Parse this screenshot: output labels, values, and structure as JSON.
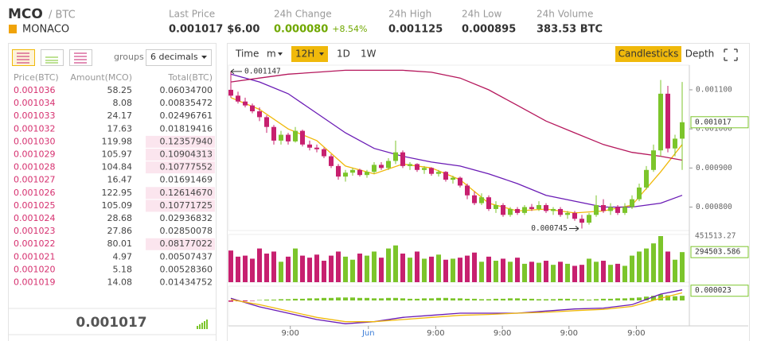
{
  "header": {
    "symbol": "MCO",
    "pair": "/ BTC",
    "name": "MONACO",
    "stats": [
      {
        "label": "Last Price",
        "value": "0.001017",
        "value2": "$6.00"
      },
      {
        "label": "24h Change",
        "value": "0.000080",
        "value2": "+8.54%"
      },
      {
        "label": "24h High",
        "value": "0.001125"
      },
      {
        "label": "24h Low",
        "value": "0.000895"
      },
      {
        "label": "24h Volume",
        "value": "383.53 BTC"
      }
    ]
  },
  "order_book": {
    "groups_label": "groups",
    "decimals": "6 decimals",
    "columns": [
      "Price(BTC)",
      "Amount(MCO)",
      "Total(BTC)"
    ],
    "rows": [
      [
        "0.001036",
        "58.25",
        "0.06034700"
      ],
      [
        "0.001034",
        "8.08",
        "0.00835472"
      ],
      [
        "0.001033",
        "24.17",
        "0.02496761"
      ],
      [
        "0.001032",
        "17.63",
        "0.01819416"
      ],
      [
        "0.001030",
        "119.98",
        "0.12357940"
      ],
      [
        "0.001029",
        "105.97",
        "0.10904313"
      ],
      [
        "0.001028",
        "104.84",
        "0.10777552"
      ],
      [
        "0.001027",
        "16.47",
        "0.01691469"
      ],
      [
        "0.001026",
        "122.95",
        "0.12614670"
      ],
      [
        "0.001025",
        "105.09",
        "0.10771725"
      ],
      [
        "0.001024",
        "28.68",
        "0.02936832"
      ],
      [
        "0.001023",
        "27.86",
        "0.02850078"
      ],
      [
        "0.001022",
        "80.01",
        "0.08177022"
      ],
      [
        "0.001021",
        "4.97",
        "0.00507437"
      ],
      [
        "0.001020",
        "5.18",
        "0.00528360"
      ],
      [
        "0.001019",
        "14.08",
        "0.01434752"
      ]
    ],
    "highlighted": [
      false,
      false,
      false,
      false,
      true,
      true,
      true,
      false,
      true,
      true,
      false,
      false,
      true,
      false,
      false,
      false
    ],
    "last_price": "0.001017"
  },
  "chart_toolbar": {
    "intervals": [
      "Time",
      "m",
      "12H",
      "1D",
      "1W"
    ],
    "active_interval": 2,
    "views": [
      "Candlesticks",
      "Depth"
    ],
    "active_view": 0
  },
  "chart_data": {
    "type": "candlestick",
    "up_color": "#7cc52b",
    "down_color": "#c7206f",
    "ylim": [
      0.00074,
      0.001163
    ],
    "yticks": [
      {
        "value": 0.0008,
        "label": "0.000800"
      },
      {
        "value": 0.0009,
        "label": "0.000900"
      },
      {
        "value": 0.001,
        "label": "0.001000"
      },
      {
        "value": 0.0011,
        "label": "0.001100"
      }
    ],
    "xticks": [
      {
        "value": 8.3,
        "label": "9:00"
      },
      {
        "value": 19.2,
        "label": "Jun"
      },
      {
        "value": 28.6,
        "label": "9:00"
      },
      {
        "value": 37.9,
        "label": "9:00"
      },
      {
        "value": 47.2,
        "label": "9:00"
      },
      {
        "value": 56.6,
        "label": "9:00"
      }
    ],
    "xtick_highlight": 1,
    "candles": [
      [
        0.0011,
        0.001147,
        0.00108,
        0.001085
      ],
      [
        0.001085,
        0.001095,
        0.001065,
        0.00107
      ],
      [
        0.00107,
        0.00108,
        0.001055,
        0.00106
      ],
      [
        0.00106,
        0.001065,
        0.00104,
        0.001045
      ],
      [
        0.001045,
        0.001055,
        0.00102,
        0.00103
      ],
      [
        0.00103,
        0.001035,
        0.00099,
        0.001005
      ],
      [
        0.001005,
        0.00101,
        0.00096,
        0.00097
      ],
      [
        0.00097,
        0.000995,
        0.00096,
        0.000985
      ],
      [
        0.000985,
        0.00099,
        0.00096,
        0.000968
      ],
      [
        0.000968,
        0.001005,
        0.000965,
        0.000995
      ],
      [
        0.000995,
        0.000998,
        0.000955,
        0.00096
      ],
      [
        0.00096,
        0.00097,
        0.000945,
        0.000952
      ],
      [
        0.000952,
        0.00096,
        0.00094,
        0.000948
      ],
      [
        0.000948,
        0.000952,
        0.000925,
        0.00093
      ],
      [
        0.00093,
        0.000935,
        0.0009,
        0.000905
      ],
      [
        0.000905,
        0.00091,
        0.00087,
        0.000878
      ],
      [
        0.000878,
        0.000895,
        0.000865,
        0.000888
      ],
      [
        0.000888,
        0.0009,
        0.00088,
        0.000895
      ],
      [
        0.000895,
        0.000898,
        0.000878,
        0.000882
      ],
      [
        0.000882,
        0.000895,
        0.000875,
        0.00089
      ],
      [
        0.00089,
        0.000915,
        0.000885,
        0.000908
      ],
      [
        0.000908,
        0.000915,
        0.000895,
        0.0009
      ],
      [
        0.0009,
        0.000925,
        0.000895,
        0.000918
      ],
      [
        0.000918,
        0.00097,
        0.00091,
        0.00094
      ],
      [
        0.00094,
        0.000945,
        0.0009,
        0.000905
      ],
      [
        0.000905,
        0.000915,
        0.000895,
        0.00091
      ],
      [
        0.00091,
        0.000912,
        0.00089,
        0.000895
      ],
      [
        0.000895,
        0.000905,
        0.000885,
        0.0009
      ],
      [
        0.0009,
        0.000902,
        0.00088,
        0.000885
      ],
      [
        0.000885,
        0.000895,
        0.000878,
        0.00089
      ],
      [
        0.00089,
        0.000892,
        0.000865,
        0.00087
      ],
      [
        0.00087,
        0.00088,
        0.00086,
        0.000875
      ],
      [
        0.000875,
        0.000878,
        0.00085,
        0.000855
      ],
      [
        0.000855,
        0.00086,
        0.00082,
        0.00083
      ],
      [
        0.00083,
        0.00084,
        0.000805,
        0.00081
      ],
      [
        0.00081,
        0.000835,
        0.000805,
        0.000825
      ],
      [
        0.000825,
        0.00083,
        0.00079,
        0.000795
      ],
      [
        0.000795,
        0.000815,
        0.000785,
        0.000805
      ],
      [
        0.000805,
        0.00081,
        0.000775,
        0.00078
      ],
      [
        0.00078,
        0.0008,
        0.000775,
        0.000795
      ],
      [
        0.000795,
        0.0008,
        0.00078,
        0.000785
      ],
      [
        0.000785,
        0.000805,
        0.00078,
        0.0008
      ],
      [
        0.0008,
        0.000808,
        0.00079,
        0.000795
      ],
      [
        0.000795,
        0.000815,
        0.00079,
        0.000805
      ],
      [
        0.000805,
        0.00081,
        0.000785,
        0.00079
      ],
      [
        0.00079,
        0.0008,
        0.00078,
        0.000795
      ],
      [
        0.000795,
        0.0008,
        0.000775,
        0.00078
      ],
      [
        0.00078,
        0.00079,
        0.00077,
        0.000785
      ],
      [
        0.000785,
        0.00079,
        0.000765,
        0.00077
      ],
      [
        0.00077,
        0.00078,
        0.000745,
        0.00076
      ],
      [
        0.00076,
        0.000785,
        0.000755,
        0.00078
      ],
      [
        0.00078,
        0.00083,
        0.000775,
        0.000805
      ],
      [
        0.000805,
        0.00082,
        0.000785,
        0.00079
      ],
      [
        0.00079,
        0.00081,
        0.00078,
        0.0008
      ],
      [
        0.0008,
        0.000805,
        0.00078,
        0.000785
      ],
      [
        0.000785,
        0.00081,
        0.00078,
        0.0008
      ],
      [
        0.0008,
        0.00083,
        0.000795,
        0.00082
      ],
      [
        0.00082,
        0.00086,
        0.000815,
        0.00085
      ],
      [
        0.00085,
        0.000905,
        0.000845,
        0.000895
      ],
      [
        0.000895,
        0.00096,
        0.00089,
        0.000945
      ],
      [
        0.000945,
        0.001125,
        0.00093,
        0.00109
      ],
      [
        0.00109,
        0.00111,
        0.00094,
        0.00095
      ],
      [
        0.00095,
        0.000985,
        0.00093,
        0.000975
      ],
      [
        0.000975,
        0.00112,
        0.000895,
        0.001017
      ]
    ],
    "ma_index": [
      0,
      4,
      8,
      12,
      16,
      20,
      24,
      28,
      32,
      36,
      40,
      44,
      48,
      52,
      56,
      60,
      63
    ],
    "ma": [
      {
        "color": "#f0b90b",
        "values": [
          0.00108,
          0.00105,
          0.001,
          0.00097,
          0.000905,
          0.000885,
          0.00091,
          0.0009,
          0.00087,
          0.00081,
          0.00079,
          0.000795,
          0.000785,
          0.00079,
          0.000805,
          0.00089,
          0.00096
        ]
      },
      {
        "color": "#6a1bb5",
        "values": [
          0.00114,
          0.00112,
          0.00109,
          0.00104,
          0.00099,
          0.00095,
          0.00093,
          0.000915,
          0.000905,
          0.000885,
          0.00086,
          0.00083,
          0.000815,
          0.0008,
          0.0008,
          0.00081,
          0.00083
        ]
      },
      {
        "color": "#b5175c",
        "values": [
          0.00112,
          0.00113,
          0.00114,
          0.001145,
          0.00115,
          0.00115,
          0.00115,
          0.001145,
          0.00113,
          0.0011,
          0.00106,
          0.00102,
          0.00099,
          0.00096,
          0.00094,
          0.00093,
          0.00092
        ]
      }
    ],
    "high_label": {
      "value": 0.001147,
      "label": "0.001147",
      "index": 0
    },
    "low_label": {
      "value": 0.000745,
      "label": "0.000745",
      "index": 49
    },
    "last": {
      "value": 0.001017,
      "label": "0.001017"
    },
    "volume": {
      "ylim": [
        0,
        451513.27
      ],
      "values": [
        310000,
        250000,
        260000,
        230000,
        330000,
        280000,
        300000,
        200000,
        250000,
        330000,
        260000,
        240000,
        270000,
        210000,
        260000,
        300000,
        250000,
        220000,
        280000,
        260000,
        300000,
        240000,
        330000,
        360000,
        280000,
        240000,
        300000,
        230000,
        250000,
        270000,
        220000,
        230000,
        240000,
        260000,
        290000,
        200000,
        250000,
        210000,
        230000,
        200000,
        240000,
        180000,
        200000,
        190000,
        210000,
        170000,
        200000,
        180000,
        160000,
        170000,
        230000,
        200000,
        210000,
        170000,
        180000,
        160000,
        260000,
        300000,
        330000,
        380000,
        451513.27,
        300000,
        220000,
        294503.586
      ],
      "max_label": {
        "value": 451513.27,
        "label": "451513.27"
      },
      "last_label": {
        "value": 294503.586,
        "label": "294503.586"
      }
    },
    "macd": {
      "ylim": [
        -6e-05,
        3e-05
      ],
      "hist": [
        -3e-06,
        -2e-06,
        -2e-06,
        -1e-06,
        1e-06,
        2e-06,
        2e-06,
        3e-06,
        3e-06,
        4e-06,
        4e-06,
        5e-06,
        5e-06,
        6e-06,
        6e-06,
        7e-06,
        7e-06,
        7e-06,
        6e-06,
        6e-06,
        5e-06,
        5e-06,
        6e-06,
        6e-06,
        5e-06,
        4e-06,
        4e-06,
        5e-06,
        5e-06,
        6e-06,
        6e-06,
        5e-06,
        5e-06,
        4e-06,
        4e-06,
        3e-06,
        3e-06,
        4e-06,
        4e-06,
        5e-06,
        5e-06,
        4e-06,
        4e-06,
        3e-06,
        3e-06,
        3e-06,
        4e-06,
        4e-06,
        3e-06,
        3e-06,
        2e-06,
        3e-06,
        4e-06,
        4e-06,
        5e-06,
        5e-06,
        6e-06,
        7e-06,
        9e-06,
        1.1e-05,
        1.4e-05,
        1.2e-05,
        1e-05,
        1.1e-05
      ],
      "dif": {
        "color": "#6a1bb5",
        "values": [
          5e-06,
          -1.5e-05,
          -3e-05,
          -4.5e-05,
          -5.5e-05,
          -5e-05,
          -4e-05,
          -3.5e-05,
          -3e-05,
          -3e-05,
          -3e-05,
          -2.5e-05,
          -2e-05,
          -1.8e-05,
          -1e-05,
          1.5e-05,
          2.5e-05
        ]
      },
      "dea": {
        "color": "#f0b90b",
        "values": [
          2e-06,
          -1e-05,
          -2.5e-05,
          -4e-05,
          -5e-05,
          -5e-05,
          -4.5e-05,
          -4e-05,
          -3.5e-05,
          -3.3e-05,
          -3e-05,
          -2.8e-05,
          -2.4e-05,
          -2.1e-05,
          -1.4e-05,
          5e-06,
          1.8e-05
        ]
      },
      "last_label": {
        "value": 2.3e-05,
        "label": "0.000023"
      }
    }
  }
}
